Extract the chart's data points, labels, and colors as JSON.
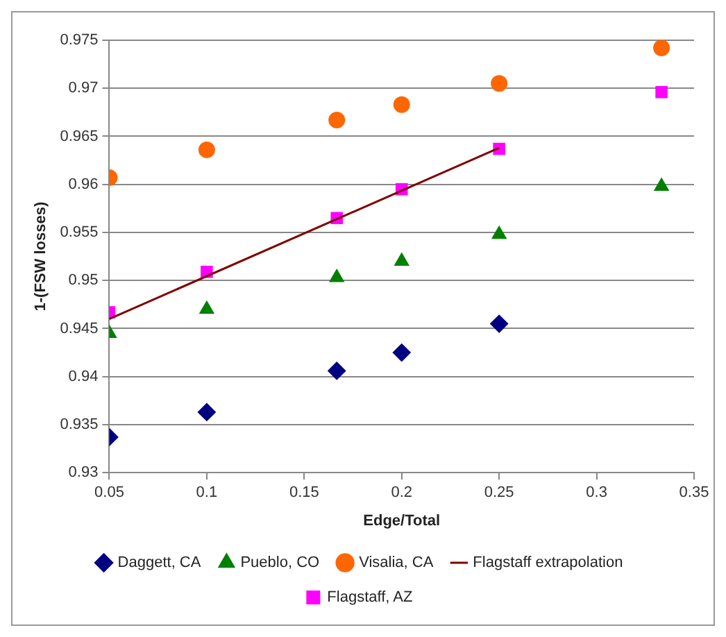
{
  "chart_data": {
    "type": "scatter",
    "xlabel": "Edge/Total",
    "ylabel": "1-(FSW losses)",
    "xlim": [
      0.05,
      0.35
    ],
    "xticks": [
      0.05,
      0.1,
      0.15,
      0.2,
      0.25,
      0.3,
      0.35
    ],
    "ylim": [
      0.93,
      0.975
    ],
    "yticks": [
      0.93,
      0.935,
      0.94,
      0.945,
      0.95,
      0.955,
      0.96,
      0.965,
      0.97,
      0.975
    ],
    "grid": "y",
    "legend": "bottom",
    "series": [
      {
        "name": "Daggett, CA",
        "color": "#000080",
        "marker": "diamond",
        "x": [
          0.05,
          0.1,
          0.1667,
          0.2,
          0.25
        ],
        "values": [
          0.9337,
          0.9363,
          0.9406,
          0.9425,
          0.9455
        ]
      },
      {
        "name": "Pueblo, CO",
        "color": "#008000",
        "marker": "triangle",
        "x": [
          0.05,
          0.1,
          0.1667,
          0.2,
          0.25,
          0.3333
        ],
        "values": [
          0.9445,
          0.947,
          0.9503,
          0.952,
          0.9548,
          0.9598
        ]
      },
      {
        "name": "Visalia, CA",
        "color": "#ff6600",
        "marker": "circle",
        "x": [
          0.05,
          0.1,
          0.1667,
          0.2,
          0.25,
          0.3333
        ],
        "values": [
          0.9607,
          0.9636,
          0.9667,
          0.9683,
          0.9705,
          0.9742
        ]
      },
      {
        "name": "Flagstaff extrapolation",
        "type": "line",
        "color": "#800000",
        "marker": "none",
        "line_style": "solid",
        "x": [
          0.05,
          0.25
        ],
        "values": [
          0.946,
          0.9638
        ]
      },
      {
        "name": "Flagstaff, AZ",
        "color": "#ff00ff",
        "marker": "square",
        "x": [
          0.05,
          0.1,
          0.1667,
          0.2,
          0.25,
          0.3333
        ],
        "values": [
          0.9467,
          0.9509,
          0.9565,
          0.9595,
          0.9637,
          0.9696
        ]
      }
    ]
  }
}
